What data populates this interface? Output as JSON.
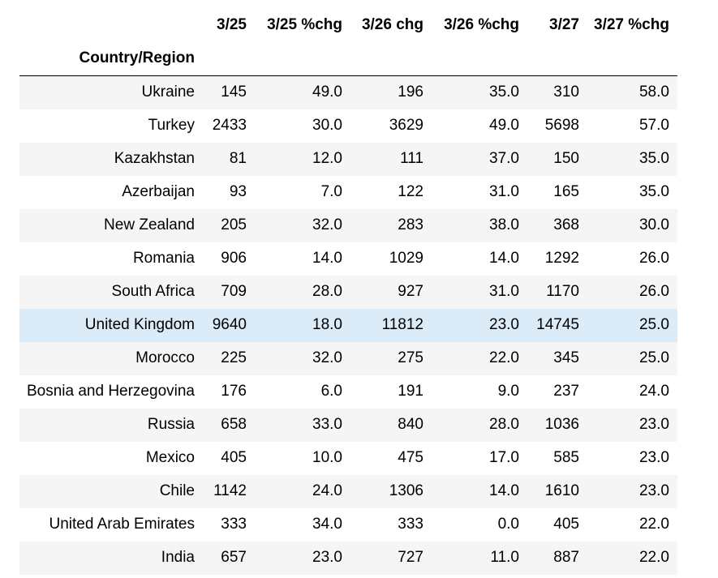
{
  "table": {
    "index_name": "Country/Region",
    "columns": [
      "3/25",
      "3/25 %chg",
      "3/26 chg",
      "3/26 %chg",
      "3/27",
      "3/27 %chg"
    ],
    "rows": [
      {
        "country": "Ukraine",
        "values": [
          "145",
          "49.0",
          "196",
          "35.0",
          "310",
          "58.0"
        ]
      },
      {
        "country": "Turkey",
        "values": [
          "2433",
          "30.0",
          "3629",
          "49.0",
          "5698",
          "57.0"
        ]
      },
      {
        "country": "Kazakhstan",
        "values": [
          "81",
          "12.0",
          "111",
          "37.0",
          "150",
          "35.0"
        ]
      },
      {
        "country": "Azerbaijan",
        "values": [
          "93",
          "7.0",
          "122",
          "31.0",
          "165",
          "35.0"
        ]
      },
      {
        "country": "New Zealand",
        "values": [
          "205",
          "32.0",
          "283",
          "38.0",
          "368",
          "30.0"
        ]
      },
      {
        "country": "Romania",
        "values": [
          "906",
          "14.0",
          "1029",
          "14.0",
          "1292",
          "26.0"
        ]
      },
      {
        "country": "South Africa",
        "values": [
          "709",
          "28.0",
          "927",
          "31.0",
          "1170",
          "26.0"
        ]
      },
      {
        "country": "United Kingdom",
        "values": [
          "9640",
          "18.0",
          "11812",
          "23.0",
          "14745",
          "25.0"
        ]
      },
      {
        "country": "Morocco",
        "values": [
          "225",
          "32.0",
          "275",
          "22.0",
          "345",
          "25.0"
        ]
      },
      {
        "country": "Bosnia and Herzegovina",
        "values": [
          "176",
          "6.0",
          "191",
          "9.0",
          "237",
          "24.0"
        ]
      },
      {
        "country": "Russia",
        "values": [
          "658",
          "33.0",
          "840",
          "28.0",
          "1036",
          "23.0"
        ]
      },
      {
        "country": "Mexico",
        "values": [
          "405",
          "10.0",
          "475",
          "17.0",
          "585",
          "23.0"
        ]
      },
      {
        "country": "Chile",
        "values": [
          "1142",
          "24.0",
          "1306",
          "14.0",
          "1610",
          "23.0"
        ]
      },
      {
        "country": "United Arab Emirates",
        "values": [
          "333",
          "34.0",
          "333",
          "0.0",
          "405",
          "22.0"
        ]
      },
      {
        "country": "India",
        "values": [
          "657",
          "23.0",
          "727",
          "11.0",
          "887",
          "22.0"
        ]
      }
    ],
    "highlighted_row": "United Kingdom",
    "colors": {
      "striped_row": "#f5f5f5",
      "hover_row": "#dcebf8",
      "header_rule": "#000000"
    }
  }
}
